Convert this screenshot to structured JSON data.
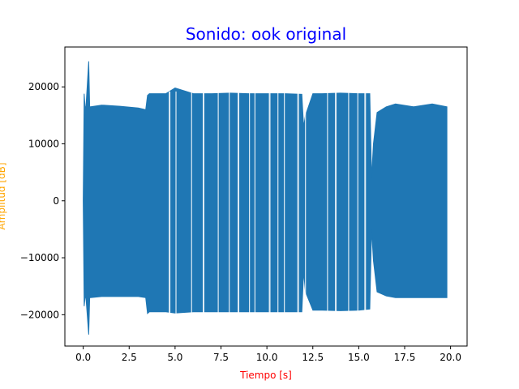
{
  "chart_data": {
    "type": "line",
    "title": "Sonido: ook original",
    "title_color": "#0000ff",
    "xlabel": "Tiempo [s]",
    "xlabel_color": "#ff0000",
    "ylabel": "Amplitud [dB]",
    "ylabel_color": "#ffa500",
    "series_color": "#1f77b4",
    "xlim": [
      -1.0,
      20.9
    ],
    "ylim": [
      -25500,
      27000
    ],
    "xticks": [
      0.0,
      2.5,
      5.0,
      7.5,
      10.0,
      12.5,
      15.0,
      17.5,
      20.0
    ],
    "xtick_labels": [
      "0.0",
      "2.5",
      "5.0",
      "7.5",
      "10.0",
      "12.5",
      "15.0",
      "17.5",
      "20.0"
    ],
    "yticks": [
      -20000,
      -10000,
      0,
      10000,
      20000
    ],
    "ytick_labels": [
      "−20000",
      "−10000",
      "0",
      "10000",
      "20000"
    ],
    "grid": false,
    "series": [
      {
        "values_note_free": true,
        "envelope_x": [
          0.0,
          0.05,
          0.1,
          0.15,
          0.3,
          0.35,
          0.4,
          1.0,
          2.0,
          3.0,
          3.4,
          3.5,
          3.6,
          4.5,
          5.0,
          6.0,
          7.0,
          8.0,
          9.0,
          10.0,
          11.0,
          11.9,
          12.0,
          12.1,
          12.5,
          13.0,
          14.0,
          15.0,
          15.6,
          15.7,
          15.8,
          16.0,
          16.5,
          17.0,
          18.0,
          19.0,
          19.8
        ],
        "envelope_max": [
          0,
          18800,
          16500,
          16500,
          24500,
          16500,
          16500,
          16800,
          16600,
          16300,
          16000,
          18500,
          18800,
          18800,
          19800,
          18800,
          18800,
          18900,
          18800,
          18800,
          18800,
          18700,
          13000,
          15000,
          18800,
          18800,
          18900,
          18800,
          18800,
          4000,
          10000,
          15500,
          16500,
          17000,
          16500,
          17000,
          16500
        ],
        "envelope_min": [
          0,
          -18500,
          -17000,
          -17000,
          -23500,
          -17000,
          -17000,
          -16800,
          -16800,
          -16800,
          -17000,
          -19800,
          -19500,
          -19500,
          -19700,
          -19500,
          -19500,
          -19500,
          -19500,
          -19500,
          -19500,
          -19500,
          -12500,
          -16000,
          -19200,
          -19200,
          -19300,
          -19200,
          -19000,
          -5000,
          -10500,
          -16000,
          -16700,
          -17000,
          -17000,
          -17000,
          -17000
        ]
      }
    ]
  }
}
